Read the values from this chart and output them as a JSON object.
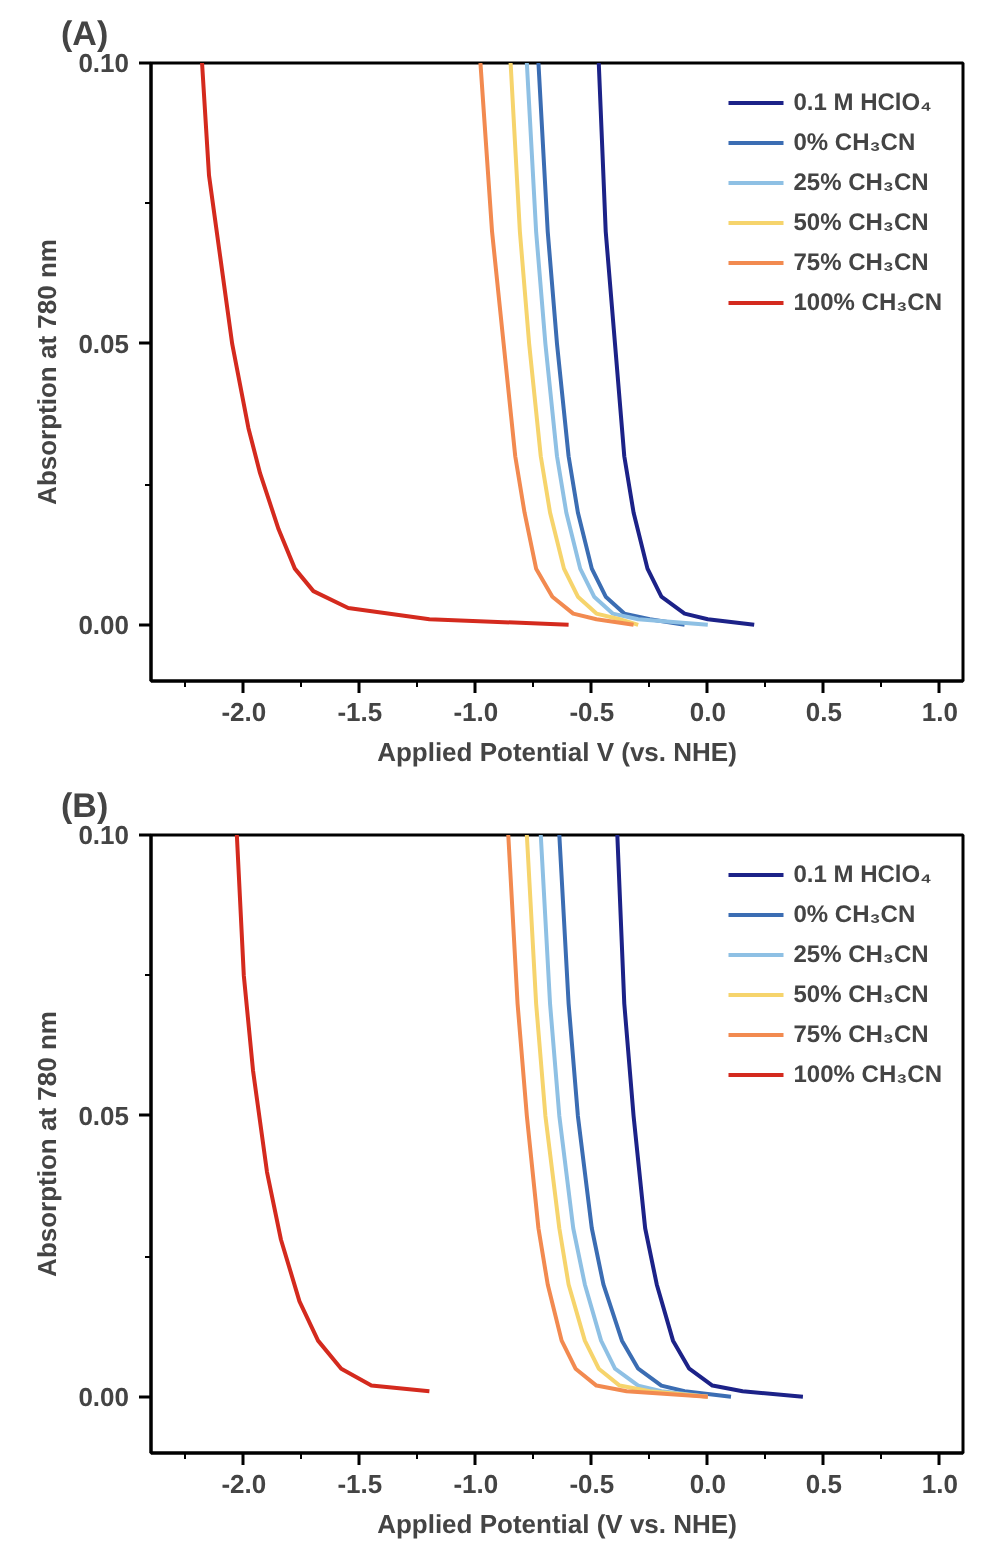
{
  "chart_data": [
    {
      "type": "line",
      "title": "(A)",
      "xlabel": "Applied Potential V (vs. NHE)",
      "ylabel": "Absorption at 780 nm",
      "xlim": [
        -2.4,
        1.1
      ],
      "ylim": [
        -0.01,
        0.1
      ],
      "xticks": [
        {
          "value": -2,
          "label": "-2.0"
        },
        {
          "value": -1.5,
          "label": "-1.5"
        },
        {
          "value": -1,
          "label": "-1.0"
        },
        {
          "value": -0.5,
          "label": "-0.5"
        },
        {
          "value": 0,
          "label": "0.0"
        },
        {
          "value": 0.5,
          "label": "0.5"
        },
        {
          "value": 1,
          "label": "1.0"
        }
      ],
      "yticks": [
        {
          "value": 0,
          "label": "0.00"
        },
        {
          "value": 0.05,
          "label": "0.05"
        },
        {
          "value": 0.1,
          "label": "0.10"
        }
      ],
      "grid": false,
      "legend": "top right",
      "line_style": "solid",
      "marker": "none",
      "series": [
        {
          "name": "0.1 M HClO₄",
          "color": "#1c2288",
          "x": [
            -0.47,
            -0.44,
            -0.4,
            -0.36,
            -0.32,
            -0.26,
            -0.2,
            -0.1,
            0.0,
            0.2
          ],
          "values": [
            0.1,
            0.07,
            0.05,
            0.03,
            0.02,
            0.01,
            0.005,
            0.002,
            0.001,
            0.0
          ]
        },
        {
          "name": "0% CH₃CN",
          "color": "#3b6db3",
          "x": [
            -0.73,
            -0.69,
            -0.65,
            -0.6,
            -0.56,
            -0.5,
            -0.44,
            -0.36,
            -0.25,
            -0.1
          ],
          "values": [
            0.1,
            0.07,
            0.05,
            0.03,
            0.02,
            0.01,
            0.005,
            0.002,
            0.001,
            0.0
          ]
        },
        {
          "name": "25% CH₃CN",
          "color": "#8ec0e4",
          "x": [
            -0.78,
            -0.74,
            -0.7,
            -0.65,
            -0.61,
            -0.55,
            -0.49,
            -0.41,
            -0.3,
            0.0
          ],
          "values": [
            0.1,
            0.07,
            0.05,
            0.03,
            0.02,
            0.01,
            0.005,
            0.002,
            0.001,
            0.0
          ]
        },
        {
          "name": "50% CH₃CN",
          "color": "#f6d46c",
          "x": [
            -0.85,
            -0.81,
            -0.77,
            -0.72,
            -0.68,
            -0.62,
            -0.56,
            -0.48,
            -0.38,
            -0.3
          ],
          "values": [
            0.1,
            0.07,
            0.05,
            0.03,
            0.02,
            0.01,
            0.005,
            0.002,
            0.001,
            0.0
          ]
        },
        {
          "name": "75% CH₃CN",
          "color": "#f28a50",
          "x": [
            -0.98,
            -0.93,
            -0.88,
            -0.83,
            -0.79,
            -0.74,
            -0.67,
            -0.58,
            -0.48,
            -0.32
          ],
          "values": [
            0.1,
            0.07,
            0.05,
            0.03,
            0.02,
            0.01,
            0.005,
            0.002,
            0.001,
            0.0
          ]
        },
        {
          "name": "100% CH₃CN",
          "color": "#d42a1e",
          "x": [
            -2.18,
            -2.15,
            -2.1,
            -2.05,
            -1.98,
            -1.93,
            -1.85,
            -1.78,
            -1.7,
            -1.55,
            -1.2,
            -0.6
          ],
          "values": [
            0.1,
            0.08,
            0.065,
            0.05,
            0.035,
            0.027,
            0.017,
            0.01,
            0.006,
            0.003,
            0.001,
            0.0
          ]
        }
      ]
    },
    {
      "type": "line",
      "title": "(B)",
      "xlabel": "Applied Potential (V vs. NHE)",
      "ylabel": "Absorption at 780 nm",
      "xlim": [
        -2.4,
        1.1
      ],
      "ylim": [
        -0.01,
        0.1
      ],
      "xticks": [
        {
          "value": -2,
          "label": "-2.0"
        },
        {
          "value": -1.5,
          "label": "-1.5"
        },
        {
          "value": -1,
          "label": "-1.0"
        },
        {
          "value": -0.5,
          "label": "-0.5"
        },
        {
          "value": 0,
          "label": "0.0"
        },
        {
          "value": 0.5,
          "label": "0.5"
        },
        {
          "value": 1,
          "label": "1.0"
        }
      ],
      "yticks": [
        {
          "value": 0,
          "label": "0.00"
        },
        {
          "value": 0.05,
          "label": "0.05"
        },
        {
          "value": 0.1,
          "label": "0.10"
        }
      ],
      "grid": false,
      "legend": "top right",
      "line_style": "solid",
      "marker": "none",
      "series": [
        {
          "name": "0.1 M HClO₄",
          "color": "#1c2288",
          "x": [
            -0.39,
            -0.36,
            -0.32,
            -0.27,
            -0.22,
            -0.15,
            -0.08,
            0.02,
            0.15,
            0.41
          ],
          "values": [
            0.1,
            0.07,
            0.05,
            0.03,
            0.02,
            0.01,
            0.005,
            0.002,
            0.001,
            0.0
          ]
        },
        {
          "name": "0% CH₃CN",
          "color": "#3b6db3",
          "x": [
            -0.64,
            -0.6,
            -0.56,
            -0.5,
            -0.45,
            -0.37,
            -0.3,
            -0.2,
            -0.1,
            0.1
          ],
          "values": [
            0.1,
            0.07,
            0.05,
            0.03,
            0.02,
            0.01,
            0.005,
            0.002,
            0.001,
            0.0
          ]
        },
        {
          "name": "25% CH₃CN",
          "color": "#8ec0e4",
          "x": [
            -0.72,
            -0.68,
            -0.64,
            -0.58,
            -0.53,
            -0.46,
            -0.4,
            -0.3,
            -0.2,
            0.0
          ],
          "values": [
            0.1,
            0.07,
            0.05,
            0.03,
            0.02,
            0.01,
            0.005,
            0.002,
            0.001,
            0.0
          ]
        },
        {
          "name": "50% CH₃CN",
          "color": "#f6d46c",
          "x": [
            -0.78,
            -0.74,
            -0.7,
            -0.64,
            -0.6,
            -0.53,
            -0.47,
            -0.38,
            -0.25,
            0.0
          ],
          "values": [
            0.1,
            0.07,
            0.05,
            0.03,
            0.02,
            0.01,
            0.005,
            0.002,
            0.001,
            0.0
          ]
        },
        {
          "name": "75% CH₃CN",
          "color": "#f28a50",
          "x": [
            -0.86,
            -0.82,
            -0.78,
            -0.73,
            -0.69,
            -0.63,
            -0.57,
            -0.48,
            -0.35,
            0.0
          ],
          "values": [
            0.1,
            0.07,
            0.05,
            0.03,
            0.02,
            0.01,
            0.005,
            0.002,
            0.001,
            0.0
          ]
        },
        {
          "name": "100% CH₃CN",
          "color": "#d42a1e",
          "x": [
            -2.03,
            -2.0,
            -1.96,
            -1.9,
            -1.84,
            -1.76,
            -1.68,
            -1.58,
            -1.45,
            -1.2
          ],
          "values": [
            0.1,
            0.075,
            0.058,
            0.04,
            0.028,
            0.017,
            0.01,
            0.005,
            0.002,
            0.001
          ]
        }
      ]
    }
  ]
}
